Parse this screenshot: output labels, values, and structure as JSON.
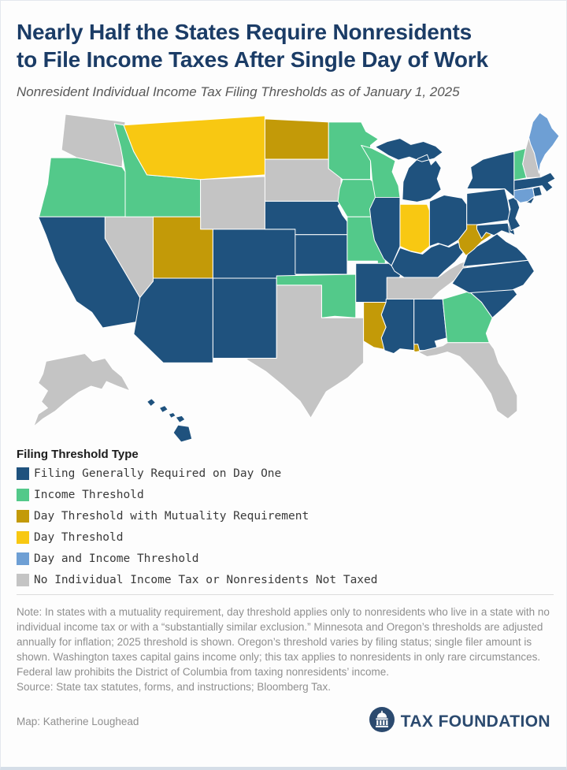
{
  "header": {
    "title_line1": "Nearly Half the States Require Nonresidents",
    "title_line2": "to File Income Taxes After Single Day of Work",
    "subtitle": "Nonresident Individual Income Tax Filing Thresholds as of January 1, 2025"
  },
  "legend": {
    "title": "Filing Threshold Type",
    "items": [
      {
        "key": "day_one",
        "label": "Filing Generally Required on Day One",
        "color": "#1F527E"
      },
      {
        "key": "income",
        "label": "Income Threshold",
        "color": "#53C98A"
      },
      {
        "key": "day_mutuality",
        "label": "Day Threshold with Mutuality Requirement",
        "color": "#C39A08"
      },
      {
        "key": "day",
        "label": "Day Threshold",
        "color": "#F8C812"
      },
      {
        "key": "day_income",
        "label": "Day and Income Threshold",
        "color": "#6E9FD4"
      },
      {
        "key": "none",
        "label": "No Individual Income Tax or Nonresidents Not Taxed",
        "color": "#C4C4C4"
      }
    ]
  },
  "map": {
    "border_color": "#ffffff",
    "states": {
      "WA": "none",
      "OR": "income",
      "CA": "day_one",
      "NV": "none",
      "ID": "income",
      "MT": "day",
      "WY": "none",
      "UT": "day_mutuality",
      "CO": "day_one",
      "AZ": "day_one",
      "NM": "day_one",
      "ND": "day_mutuality",
      "SD": "none",
      "NE": "day_one",
      "KS": "day_one",
      "OK": "income",
      "TX": "none",
      "MN": "income",
      "IA": "income",
      "MO": "income",
      "AR": "day_one",
      "LA": "day_mutuality",
      "WI": "income",
      "IL": "day_one",
      "MI": "day_one",
      "IN": "day",
      "OH": "day_one",
      "KY": "day_one",
      "TN": "none",
      "MS": "day_one",
      "AL": "day_one",
      "GA": "income",
      "FL": "none",
      "SC": "day_one",
      "NC": "day_one",
      "VA": "day_one",
      "WV": "day_mutuality",
      "MD": "day_one",
      "DE": "day_one",
      "PA": "day_one",
      "NJ": "day_one",
      "NY": "day_one",
      "VT": "income",
      "NH": "none",
      "MA": "day_one",
      "RI": "day_one",
      "CT": "day_income",
      "ME": "day_income",
      "AK": "none",
      "HI": "day_one"
    }
  },
  "note": {
    "text": "Note: In states with a mutuality requirement, day threshold applies only to nonresidents who live in a state with no individual income tax or with a “substantially similar exclusion.” Minnesota and Oregon’s thresholds are adjusted annually for inflation; 2025 threshold is shown. Oregon’s threshold varies by filing status; single filer amount is shown. Washington taxes capital gains income only; this tax applies to nonresidents in only rare circumstances. Federal law prohibits the District of Columbia from taxing nonresidents’ income.",
    "source": "Source: State tax statutes, forms, and instructions; Bloomberg Tax."
  },
  "footer": {
    "credit": "Map: Katherine Loughead",
    "brand_name": "TAX FOUNDATION",
    "brand_color": "#2B4A6F"
  }
}
